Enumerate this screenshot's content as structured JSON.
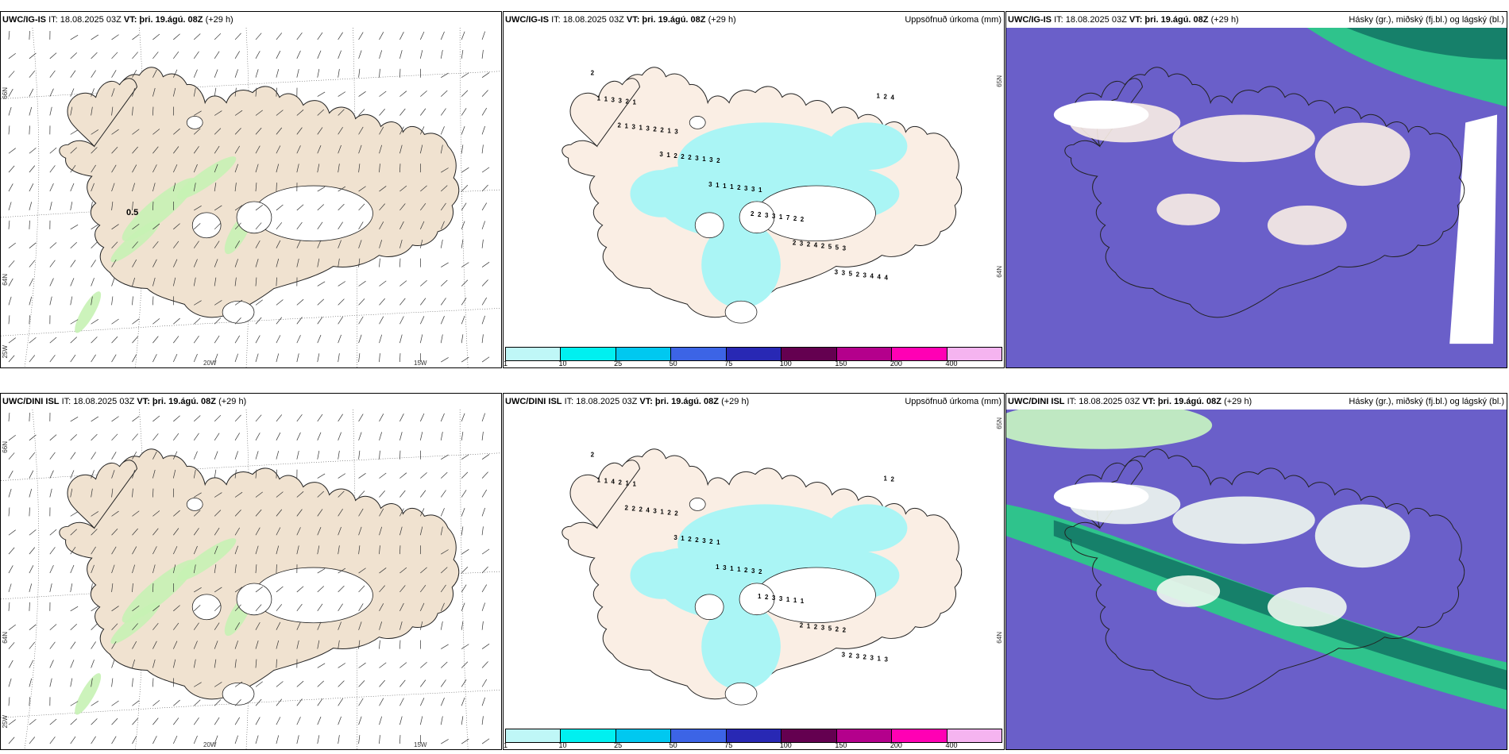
{
  "rows": [
    {
      "panels": [
        {
          "model": "UWC/IG-IS",
          "it": "IT: 18.08.2025 03Z",
          "vt": "VT: þri. 19.ágú. 08Z",
          "lead": "(+29 h)",
          "title": ""
        },
        {
          "model": "UWC/IG-IS",
          "it": "IT: 18.08.2025 03Z",
          "vt": "VT: þri. 19.ágú. 08Z",
          "lead": "(+29 h)",
          "title": "Uppsöfnuð úrkoma (mm)"
        },
        {
          "model": "UWC/IG-IS",
          "it": "IT: 18.08.2025 03Z",
          "vt": "VT: þri. 19.ágú. 08Z",
          "lead": "(+29 h)",
          "title": "Hásky (gr.), miðský (fj.bl.) og lágský (bl.)"
        }
      ]
    },
    {
      "panels": [
        {
          "model": "UWC/DINI ISL",
          "it": "IT: 18.08.2025 03Z",
          "vt": "VT: þri. 19.ágú. 08Z",
          "lead": "(+29 h)",
          "title": ""
        },
        {
          "model": "UWC/DINI ISL",
          "it": "IT: 18.08.2025 03Z",
          "vt": "VT: þri. 19.ágú. 08Z",
          "lead": "(+29 h)",
          "title": "Uppsöfnuð úrkoma (mm)"
        },
        {
          "model": "UWC/DINI ISL",
          "it": "IT: 18.08.2025 03Z",
          "vt": "VT: þri. 19.ágú. 08Z",
          "lead": "(+29 h)",
          "title": "Hásky (gr.), miðský (fj.bl.) og lágský (bl.)"
        }
      ]
    }
  ],
  "axes": {
    "lon": [
      "20W",
      "15W"
    ],
    "lon_left": "25W",
    "lat": [
      "66N",
      "64N"
    ],
    "lat_right": [
      "65N",
      "64N"
    ]
  },
  "wind_label": "0.5",
  "precip_scale": {
    "labels": [
      "1",
      "10",
      "25",
      "50",
      "75",
      "100",
      "150",
      "200",
      "400"
    ],
    "colors": [
      "#bff7f7",
      "#00f0f0",
      "#00c8f0",
      "#3c64e6",
      "#2828b4",
      "#640050",
      "#b4008c",
      "#ff00b4",
      "#f5b4f0"
    ]
  },
  "precip_values_top": [
    "2",
    "1",
    "3",
    "2",
    "1",
    "2",
    "3",
    "4",
    "2",
    "1",
    "3",
    "3",
    "2",
    "5",
    "4",
    "3",
    "2",
    "1",
    "3",
    "7",
    "5",
    "4",
    "3",
    "2",
    "3",
    "2",
    "1",
    "2",
    "3",
    "1",
    "3",
    "2",
    "1",
    "3",
    "4",
    "2",
    "1",
    "1",
    "2",
    "1",
    "3",
    "2",
    "5",
    "4",
    "3",
    "2",
    "1",
    "2",
    "3",
    "3",
    "2",
    "1",
    "1",
    "3",
    "2",
    "2",
    "3",
    "1",
    "2",
    "3"
  ],
  "precip_values_bottom": [
    "2",
    "1",
    "2",
    "1",
    "2",
    "1",
    "2",
    "3",
    "1",
    "2",
    "2",
    "3",
    "1",
    "2",
    "1",
    "2",
    "1",
    "3",
    "2",
    "1",
    "5",
    "3",
    "4",
    "3",
    "2",
    "1",
    "3",
    "3",
    "2",
    "1",
    "4",
    "2",
    "1",
    "3",
    "2",
    "3",
    "1",
    "2",
    "1",
    "3",
    "2",
    "1",
    "2",
    "2",
    "2",
    "3",
    "1",
    "1",
    "2",
    "3",
    "1",
    "2"
  ],
  "colors": {
    "land": "#f0e2d0",
    "land_precip": "#faeee4",
    "precip_cyan": "#aaf5f5",
    "cloud_blue": "#6a5fc9",
    "cloud_green": "#2fc38c",
    "cloud_teal": "#16806a",
    "cloud_lightgreen": "#bfe8c2",
    "ice": "#ffffff"
  }
}
